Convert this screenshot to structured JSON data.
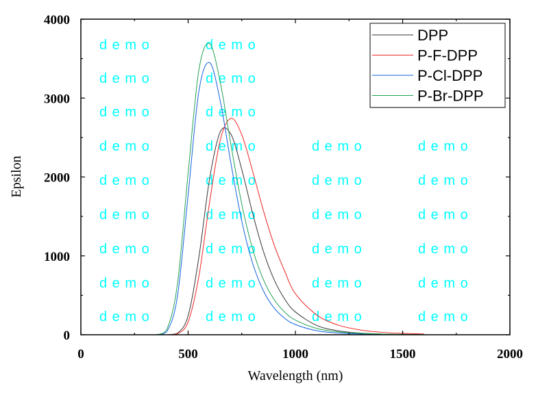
{
  "chart_data": {
    "type": "line",
    "title": "",
    "xlabel": "Wavelength (nm)",
    "ylabel": "Epsilon",
    "xlim": [
      0,
      2000
    ],
    "ylim": [
      0,
      4000
    ],
    "xticks": [
      0,
      500,
      1000,
      1500,
      2000
    ],
    "yticks": [
      0,
      1000,
      2000,
      3000,
      4000
    ],
    "grid": false,
    "legend_position": "top-right",
    "x": [
      300,
      350,
      400,
      450,
      500,
      550,
      600,
      650,
      700,
      750,
      800,
      850,
      900,
      950,
      1000,
      1100,
      1200,
      1300,
      1400,
      1500,
      1600
    ],
    "series": [
      {
        "name": "DPP",
        "color": "#333333",
        "values": [
          0,
          0,
          0,
          19,
          242,
          980,
          1976,
          2573,
          2539,
          2096,
          1547,
          1065,
          703,
          453,
          289,
          118,
          50,
          22,
          10,
          5,
          3
        ]
      },
      {
        "name": "P-F-DPP",
        "color": "#ee2222",
        "values": [
          0,
          0,
          0,
          12,
          163,
          738,
          1680,
          2470,
          2742,
          2535,
          2080,
          1583,
          1146,
          807,
          520,
          250,
          122,
          62,
          32,
          18,
          10
        ]
      },
      {
        "name": "P-Cl-DPP",
        "color": "#1060e0",
        "values": [
          0,
          0,
          37,
          483,
          1772,
          3084,
          3450,
          2960,
          2164,
          1442,
          912,
          562,
          342,
          209,
          129,
          51,
          22,
          10,
          5,
          2,
          1
        ]
      },
      {
        "name": "P-Br-DPP",
        "color": "#20a050",
        "values": [
          0,
          1,
          63,
          639,
          2048,
          3353,
          3690,
          3198,
          2401,
          1658,
          1093,
          704,
          449,
          288,
          186,
          80,
          37,
          18,
          9,
          5,
          3
        ]
      }
    ]
  },
  "watermark": "d e m o"
}
